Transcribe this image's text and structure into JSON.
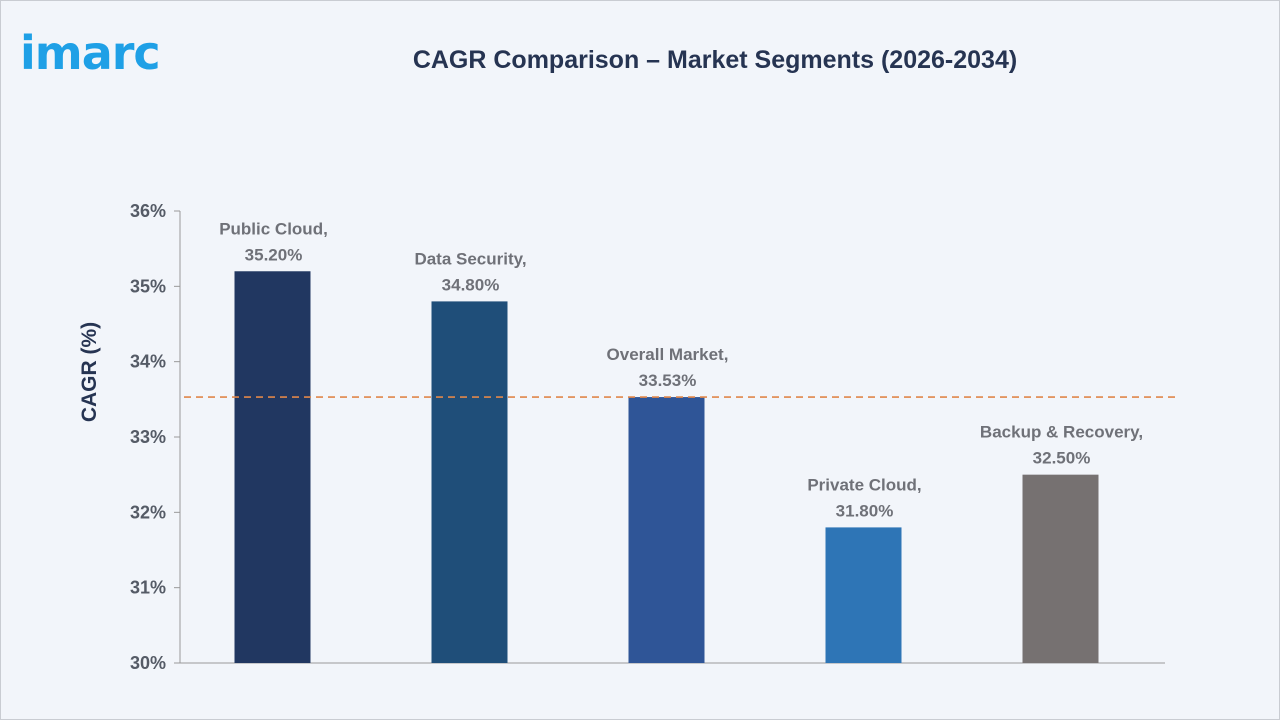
{
  "logo": {
    "text": "imarc"
  },
  "colors": {
    "title": "#263452",
    "reference_line": "#e0874a",
    "axis": "#999999"
  },
  "chart_data": {
    "type": "bar",
    "title": "CAGR Comparison – Market Segments (2026-2034)",
    "ylabel": "CAGR (%)",
    "xlabel": "",
    "ylim": [
      30,
      36
    ],
    "yticks": [
      {
        "value": 30,
        "label": "30%"
      },
      {
        "value": 31,
        "label": "31%"
      },
      {
        "value": 32,
        "label": "32%"
      },
      {
        "value": 33,
        "label": "33%"
      },
      {
        "value": 34,
        "label": "34%"
      },
      {
        "value": 35,
        "label": "35%"
      },
      {
        "value": 36,
        "label": "36%"
      }
    ],
    "grid": false,
    "categories": [
      "Public Cloud",
      "Data Security",
      "Overall Market",
      "Private Cloud",
      "Backup & Recovery"
    ],
    "values": [
      35.2,
      34.8,
      33.53,
      31.8,
      32.5
    ],
    "data_labels": [
      [
        "Public Cloud,",
        "35.20%"
      ],
      [
        "Data Security,",
        "34.80%"
      ],
      [
        "Overall Market,",
        "33.53%"
      ],
      [
        "Private Cloud,",
        "31.80%"
      ],
      [
        "Backup & Recovery,",
        "32.50%"
      ]
    ],
    "bar_colors": [
      "#213761",
      "#1f4e79",
      "#2f5597",
      "#2e75b6",
      "#767171"
    ],
    "reference_line": {
      "value": 33.53,
      "style": "dashed"
    }
  }
}
